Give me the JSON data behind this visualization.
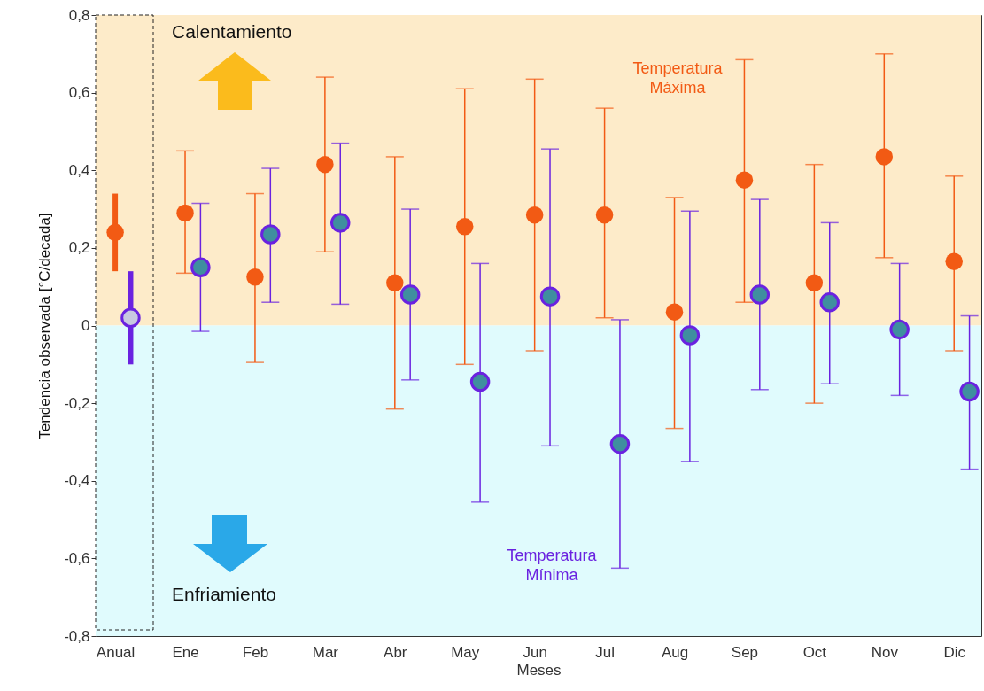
{
  "chart_data": {
    "type": "scatter",
    "xlabel": "Meses",
    "ylabel": "Tendencia observada [°C/decada]",
    "categories": [
      "Anual",
      "Ene",
      "Feb",
      "Mar",
      "Abr",
      "May",
      "Jun",
      "Jul",
      "Aug",
      "Sep",
      "Oct",
      "Nov",
      "Dic"
    ],
    "series": [
      {
        "name": "Temperatura Máxima",
        "color": "#f25a14",
        "values": [
          0.24,
          0.29,
          0.125,
          0.415,
          0.11,
          0.255,
          0.285,
          0.285,
          0.035,
          0.375,
          0.11,
          0.435,
          0.165
        ],
        "errors": [
          [
            0.14,
            0.34
          ],
          [
            0.135,
            0.45
          ],
          [
            -0.095,
            0.34
          ],
          [
            0.19,
            0.64
          ],
          [
            -0.215,
            0.435
          ],
          [
            -0.1,
            0.61
          ],
          [
            -0.065,
            0.635
          ],
          [
            0.02,
            0.56
          ],
          [
            -0.265,
            0.33
          ],
          [
            0.06,
            0.685
          ],
          [
            -0.2,
            0.415
          ],
          [
            0.175,
            0.7
          ],
          [
            -0.065,
            0.385
          ]
        ]
      },
      {
        "name": "Temperatura Mínima",
        "color": "#6a22e0",
        "colors": [
          "#c8c8e0",
          "#3f8f9f",
          "#3f8f9f",
          "#3f8f9f",
          "#3f8f9f",
          "#3f8f9f",
          "#3f8f9f",
          "#3f8f9f",
          "#3f8f9f",
          "#3f8f9f",
          "#3f8f9f",
          "#3f8f9f",
          "#3f8f9f"
        ],
        "values": [
          0.02,
          0.15,
          0.235,
          0.265,
          0.08,
          -0.145,
          0.075,
          -0.305,
          -0.025,
          0.08,
          0.06,
          -0.01,
          -0.17
        ],
        "errors": [
          [
            -0.1,
            0.14
          ],
          [
            -0.015,
            0.315
          ],
          [
            0.06,
            0.405
          ],
          [
            0.055,
            0.47
          ],
          [
            -0.14,
            0.3
          ],
          [
            -0.455,
            0.16
          ],
          [
            -0.31,
            0.455
          ],
          [
            -0.625,
            0.015
          ],
          [
            -0.35,
            0.295
          ],
          [
            -0.165,
            0.325
          ],
          [
            -0.15,
            0.265
          ],
          [
            -0.18,
            0.16
          ],
          [
            -0.37,
            0.025
          ]
        ]
      }
    ],
    "ylim": [
      -0.8,
      0.8
    ],
    "yticks": [
      {
        "value": -0.8,
        "label": "-0,8"
      },
      {
        "value": -0.6,
        "label": "-0,6"
      },
      {
        "value": -0.4,
        "label": "-0,4"
      },
      {
        "value": -0.2,
        "label": "-0,2"
      },
      0,
      {
        "value": 0.2,
        "label": "0,2"
      },
      {
        "value": 0.4,
        "label": "0,4"
      },
      {
        "value": 0.6,
        "label": "0,6"
      },
      {
        "value": 0.8,
        "label": "0,8"
      }
    ],
    "bands": [
      {
        "axis": "y",
        "from": 0,
        "to": 0.8,
        "label": "Calentamiento",
        "color": "#fdebc9"
      },
      {
        "axis": "y",
        "from": 0,
        "to": -0.8,
        "label": "Enfriamiento",
        "color": "#e0fbfd"
      }
    ],
    "marker": "circle",
    "grid": false
  }
}
